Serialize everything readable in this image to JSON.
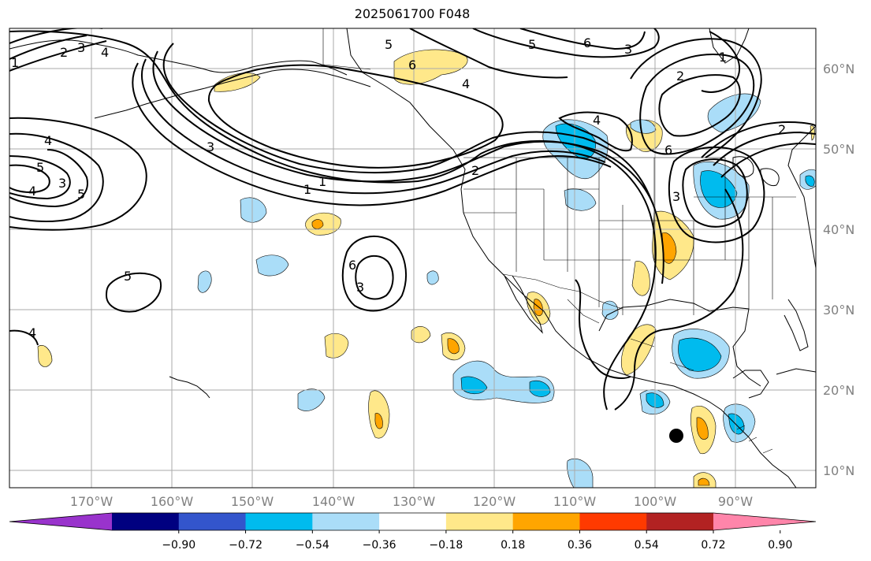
{
  "title": "2025061700 F048",
  "map": {
    "lon_ticks": [
      "170°W",
      "160°W",
      "150°W",
      "140°W",
      "130°W",
      "120°W",
      "110°W",
      "100°W",
      "90°W"
    ],
    "lat_ticks": [
      "60°N",
      "50°N",
      "40°N",
      "30°N",
      "20°N",
      "10°N"
    ],
    "contour_labels": [
      "1",
      "2",
      "3",
      "4",
      "5",
      "6",
      "4",
      "5",
      "6",
      "3",
      "2",
      "1",
      "4",
      "6",
      "3",
      "2",
      "3",
      "1",
      "1",
      "2",
      "4",
      "5",
      "3",
      "4",
      "5",
      "6",
      "3",
      "5",
      "4",
      "2",
      "3",
      "4",
      "5",
      "6",
      "2"
    ],
    "marker": "black-dot"
  },
  "colorbar": {
    "labels": [
      "−0.90",
      "−0.72",
      "−0.54",
      "−0.36",
      "−0.18",
      "0.18",
      "0.36",
      "0.54",
      "0.72",
      "0.90"
    ],
    "colors": [
      "#9933cc",
      "#000080",
      "#3355cc",
      "#00bbee",
      "#aaddf8",
      "#ffffff",
      "#ffe88a",
      "#ffa500",
      "#ff3a00",
      "#b22222",
      "#ff85aa"
    ]
  }
}
